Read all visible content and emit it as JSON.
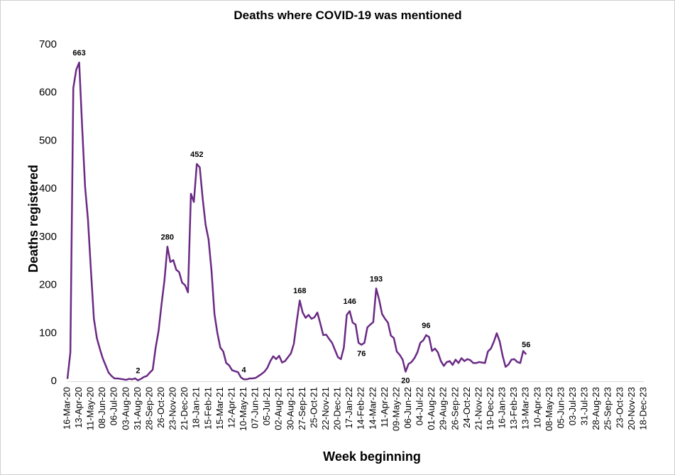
{
  "chart_data": {
    "type": "line",
    "title": "Deaths where COVID-19 was mentioned",
    "x_label": "Week beginning",
    "y_label": "Deaths registered",
    "color": "#6a2a84",
    "ylim": [
      0,
      700
    ],
    "yticks": [
      0,
      100,
      200,
      300,
      400,
      500,
      600,
      700
    ],
    "grid": false,
    "categories": [
      "16-Mar-20",
      null,
      null,
      null,
      "13-Apr-20",
      null,
      null,
      null,
      "11-May-20",
      null,
      null,
      null,
      "08-Jun-20",
      null,
      null,
      null,
      "06-Jul-20",
      null,
      null,
      null,
      "03-Aug-20",
      null,
      null,
      null,
      "31-Aug-20",
      null,
      null,
      null,
      "28-Sep-20",
      null,
      null,
      null,
      "26-Oct-20",
      null,
      null,
      null,
      "23-Nov-20",
      null,
      null,
      null,
      "21-Dec-20",
      null,
      null,
      null,
      "18-Jan-21",
      null,
      null,
      null,
      "15-Feb-21",
      null,
      null,
      null,
      "15-Mar-21",
      null,
      null,
      null,
      "12-Apr-21",
      null,
      null,
      null,
      "10-May-21",
      null,
      null,
      null,
      "07-Jun-21",
      null,
      null,
      null,
      "05-Jul-21",
      null,
      null,
      null,
      "02-Aug-21",
      null,
      null,
      null,
      "30-Aug-21",
      null,
      null,
      null,
      "27-Sep-21",
      null,
      null,
      null,
      "25-Oct-21",
      null,
      null,
      null,
      "22-Nov-21",
      null,
      null,
      null,
      "20-Dec-21",
      null,
      null,
      null,
      "17-Jan-22",
      null,
      null,
      null,
      "14-Feb-22",
      null,
      null,
      null,
      "14-Mar-22",
      null,
      null,
      null,
      "11-Apr-22",
      null,
      null,
      null,
      "09-May-22",
      null,
      null,
      null,
      "06-Jun-22",
      null,
      null,
      null,
      "04-Jul-22",
      null,
      null,
      null,
      "01-Aug-22",
      null,
      null,
      null,
      "29-Aug-22",
      null,
      null,
      null,
      "26-Sep-22",
      null,
      null,
      null,
      "24-Oct-22",
      null,
      null,
      null,
      "21-Nov-22",
      null,
      null,
      null,
      "19-Dec-22",
      null,
      null,
      null,
      "16-Jan-23",
      null,
      null,
      null,
      "13-Feb-23",
      null,
      null,
      null,
      "13-Mar-23",
      null,
      null,
      null,
      "10-Apr-23",
      null,
      null,
      null,
      "08-May-23",
      null,
      null,
      null,
      "05-Jun-23",
      null,
      null,
      null,
      "03-Jul-23",
      null,
      null,
      null,
      "31-Jul-23",
      null,
      null,
      null,
      "28-Aug-23",
      null,
      null,
      null,
      "25-Sep-23",
      null,
      null,
      null,
      "23-Oct-23",
      null,
      null,
      null,
      "20-Nov-23",
      null,
      null,
      null,
      "18-Dec-23"
    ],
    "values": [
      5,
      60,
      610,
      648,
      663,
      530,
      405,
      335,
      230,
      130,
      90,
      68,
      48,
      33,
      18,
      11,
      6,
      6,
      5,
      4,
      3,
      5,
      4,
      6,
      2,
      5,
      9,
      11,
      18,
      24,
      70,
      105,
      160,
      210,
      280,
      248,
      252,
      232,
      227,
      205,
      200,
      185,
      390,
      373,
      452,
      445,
      380,
      325,
      295,
      230,
      140,
      100,
      70,
      62,
      38,
      33,
      23,
      21,
      19,
      8,
      4,
      4,
      6,
      6,
      7,
      11,
      15,
      20,
      28,
      42,
      52,
      46,
      53,
      39,
      42,
      50,
      58,
      78,
      125,
      168,
      143,
      132,
      138,
      130,
      133,
      143,
      120,
      96,
      97,
      88,
      80,
      65,
      50,
      46,
      70,
      138,
      146,
      122,
      118,
      80,
      76,
      80,
      112,
      118,
      123,
      193,
      170,
      140,
      130,
      122,
      95,
      90,
      62,
      55,
      45,
      20,
      36,
      40,
      48,
      60,
      80,
      85,
      96,
      92,
      63,
      68,
      60,
      42,
      32,
      40,
      42,
      34,
      45,
      38,
      48,
      42,
      46,
      44,
      38,
      38,
      40,
      39,
      38,
      62,
      68,
      82,
      100,
      83,
      53,
      30,
      35,
      45,
      46,
      40,
      38,
      63,
      56,
      null,
      null,
      null,
      null,
      null,
      null,
      null,
      null,
      null,
      null,
      null,
      null,
      null,
      null,
      null,
      null,
      null,
      null,
      null,
      null,
      null,
      null,
      null,
      null,
      null,
      null,
      null,
      null,
      null,
      null,
      null,
      null,
      null,
      null,
      null,
      null,
      null,
      null,
      null,
      null
    ],
    "value_labels": [
      null,
      null,
      null,
      null,
      "663",
      null,
      null,
      null,
      null,
      null,
      null,
      null,
      null,
      null,
      null,
      null,
      null,
      null,
      null,
      null,
      null,
      null,
      null,
      null,
      "2",
      null,
      null,
      null,
      null,
      null,
      null,
      null,
      null,
      null,
      "280",
      null,
      null,
      null,
      null,
      null,
      null,
      null,
      null,
      null,
      "452",
      null,
      null,
      null,
      null,
      null,
      null,
      null,
      null,
      null,
      null,
      null,
      null,
      null,
      null,
      null,
      "4",
      null,
      null,
      null,
      null,
      null,
      null,
      null,
      null,
      null,
      null,
      null,
      null,
      null,
      null,
      null,
      null,
      null,
      null,
      "168",
      null,
      null,
      null,
      null,
      null,
      null,
      null,
      null,
      null,
      null,
      null,
      null,
      null,
      null,
      null,
      null,
      "146",
      null,
      null,
      null,
      "76",
      null,
      null,
      null,
      null,
      "193",
      null,
      null,
      null,
      null,
      null,
      null,
      null,
      null,
      null,
      "20",
      null,
      null,
      null,
      null,
      null,
      null,
      "96",
      null,
      null,
      null,
      null,
      null,
      null,
      null,
      null,
      null,
      null,
      null,
      null,
      null,
      null,
      null,
      null,
      null,
      null,
      null,
      null,
      null,
      null,
      null,
      null,
      null,
      null,
      null,
      null,
      null,
      null,
      null,
      null,
      null,
      "56",
      null,
      null,
      null,
      null,
      null,
      null,
      null,
      null,
      null,
      null,
      null,
      null,
      null,
      null,
      null,
      null,
      null,
      null,
      null,
      null,
      null,
      null,
      null,
      null,
      null,
      null,
      null,
      null,
      null,
      null,
      null,
      null,
      null,
      null,
      null,
      null,
      null,
      null,
      null,
      null
    ]
  }
}
